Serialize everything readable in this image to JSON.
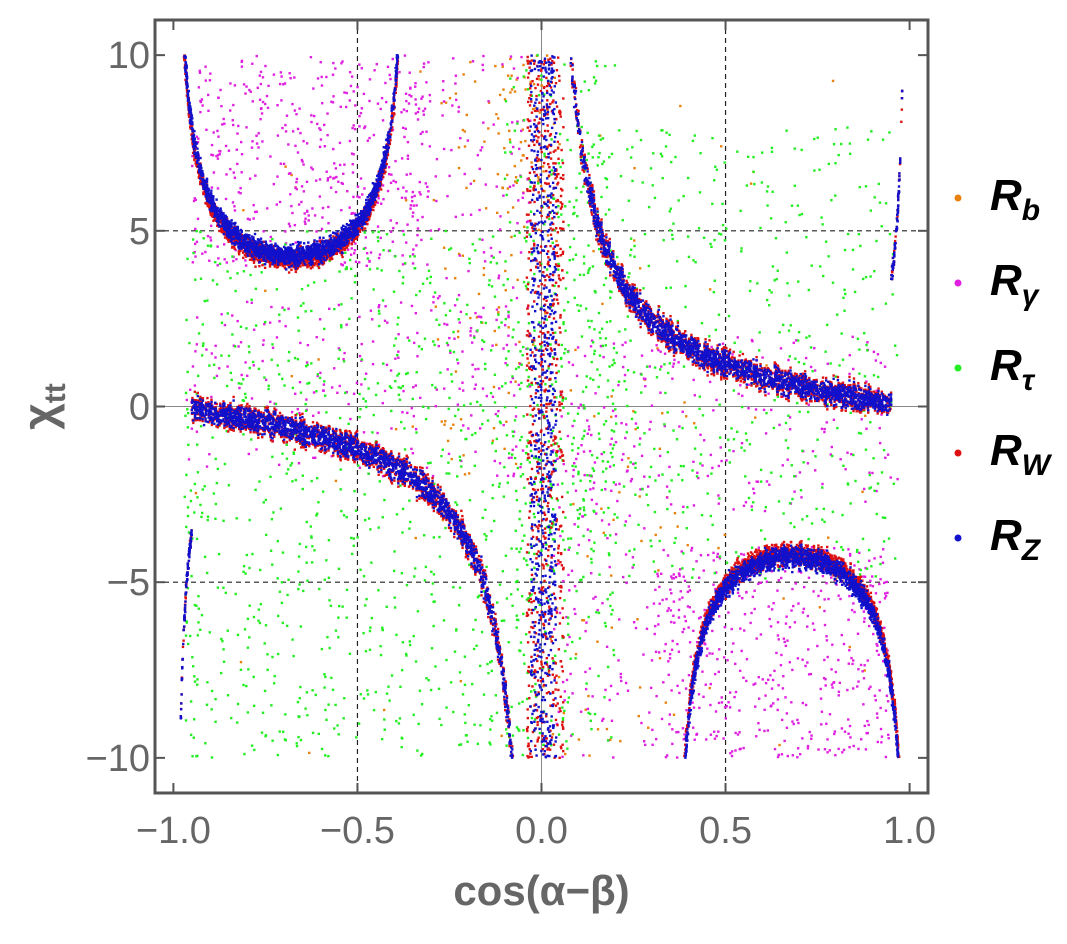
{
  "chart_data": {
    "type": "scatter",
    "title": "",
    "xlabel": "cos(α−β)",
    "ylabel_main": "χ",
    "ylabel_sub": "tt",
    "xlim": [
      -1.05,
      1.05
    ],
    "ylim": [
      -11,
      11
    ],
    "xticks": [
      -1.0,
      -0.5,
      0.0,
      0.5,
      1.0
    ],
    "xtick_labels": [
      "−1.0",
      "−0.5",
      "0.0",
      "0.5",
      "1.0"
    ],
    "yticks": [
      -10,
      -5,
      0,
      5,
      10
    ],
    "ytick_labels": [
      "−10",
      "−5",
      "0",
      "5",
      "10"
    ],
    "grid": true,
    "grid_style": "dashed at ±0.5 and ±5, solid at 0",
    "legend_position": "right",
    "series": [
      {
        "name": "R",
        "sub": "b",
        "color": "#e8820f",
        "note": "sparse points concentrated near cos(α−β)≈0 and scattered over the full plane",
        "regions": [
          {
            "x": [
              -0.12,
              0.05
            ],
            "y": [
              5,
              10
            ],
            "density": 60
          },
          {
            "x": [
              -0.3,
              0.0
            ],
            "y": [
              -2,
              10
            ],
            "density": 80
          },
          {
            "x": [
              0.0,
              0.4
            ],
            "y": [
              -10,
              5
            ],
            "density": 70
          },
          {
            "x": [
              -0.95,
              0.95
            ],
            "y": [
              -10,
              10
            ],
            "density": 60
          }
        ]
      },
      {
        "name": "R",
        "sub": "γ",
        "color": "#e020e0",
        "note": "broad bands around the R_W/R_Z hyperbola branches",
        "regions": [
          {
            "x": [
              -0.95,
              -0.3
            ],
            "y": [
              4,
              10
            ],
            "density": 500
          },
          {
            "x": [
              0.3,
              0.95
            ],
            "y": [
              -10,
              -4
            ],
            "density": 500
          },
          {
            "x": [
              -0.97,
              -0.05
            ],
            "y": [
              -2,
              3
            ],
            "density": 220
          },
          {
            "x": [
              0.05,
              0.97
            ],
            "y": [
              -3,
              2
            ],
            "density": 220
          },
          {
            "x": [
              -0.3,
              -0.03
            ],
            "y": [
              0,
              10
            ],
            "density": 120
          },
          {
            "x": [
              0.03,
              0.3
            ],
            "y": [
              -10,
              0
            ],
            "density": 120
          }
        ]
      },
      {
        "name": "R",
        "sub": "τ",
        "color": "#22ee22",
        "note": "diffuse coverage of most of the plane",
        "regions": [
          {
            "x": [
              -0.97,
              0.0
            ],
            "y": [
              -10,
              5
            ],
            "density": 900
          },
          {
            "x": [
              0.0,
              0.97
            ],
            "y": [
              -5,
              8
            ],
            "density": 600
          },
          {
            "x": [
              -0.1,
              0.2
            ],
            "y": [
              -10,
              10
            ],
            "density": 350
          }
        ]
      },
      {
        "name": "R",
        "sub": "W",
        "color": "#dd1111",
        "note": "hyperbola-like bands χ_tt ≈ k / cos(α−β) plus U-shaped branches near ±1",
        "bands": [
          {
            "shape": "hyperbola",
            "k": 0.9,
            "x": [
              -0.98,
              -0.02
            ],
            "thickness": 0.55
          },
          {
            "shape": "hyperbola",
            "k": 0.9,
            "x": [
              0.02,
              0.98
            ],
            "thickness": 0.55
          },
          {
            "shape": "u_top",
            "center": -0.68,
            "halfwidth": 0.32,
            "ymin": 4.2,
            "x": [
              -0.99,
              -0.33
            ]
          },
          {
            "shape": "u_bottom",
            "center": 0.68,
            "halfwidth": 0.32,
            "ymax": -4.2,
            "x": [
              0.28,
              0.99
            ]
          },
          {
            "shape": "vertical",
            "x": [
              -0.04,
              0.06
            ],
            "y": [
              -10,
              10
            ]
          }
        ]
      },
      {
        "name": "R",
        "sub": "Z",
        "color": "#1111cc",
        "note": "tracks the R_W bands, slightly narrower",
        "bands": [
          {
            "shape": "hyperbola",
            "k": 0.9,
            "x": [
              -0.98,
              -0.02
            ],
            "thickness": 0.45
          },
          {
            "shape": "hyperbola",
            "k": 0.9,
            "x": [
              0.02,
              0.98
            ],
            "thickness": 0.45
          },
          {
            "shape": "u_top",
            "center": -0.68,
            "halfwidth": 0.32,
            "ymin": 4.3,
            "x": [
              -0.99,
              -0.33
            ]
          },
          {
            "shape": "u_bottom",
            "center": 0.68,
            "halfwidth": 0.32,
            "ymax": -4.3,
            "x": [
              0.28,
              0.99
            ]
          },
          {
            "shape": "vertical",
            "x": [
              -0.03,
              0.04
            ],
            "y": [
              -10,
              10
            ]
          }
        ]
      }
    ]
  }
}
